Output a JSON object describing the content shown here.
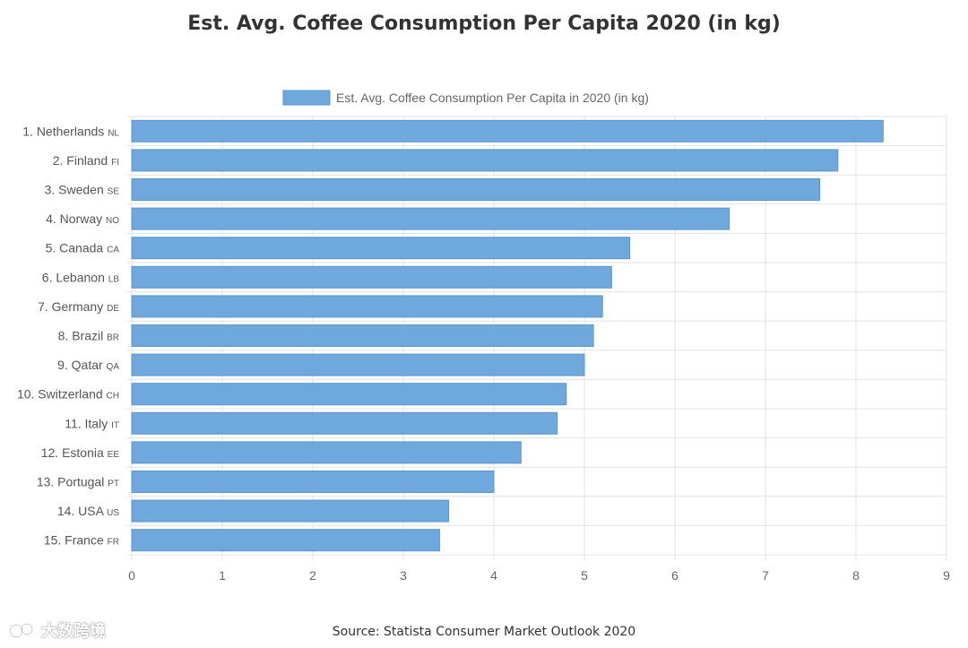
{
  "chart_data": {
    "type": "bar",
    "orientation": "horizontal",
    "title": "Est. Avg. Coffee Consumption Per Capita 2020 (in kg)",
    "legend": [
      "Est. Avg. Coffee Consumption Per Capita in 2020 (in kg)"
    ],
    "legend_position": "top",
    "categories": [
      {
        "label": "1. Netherlands",
        "code": "NL"
      },
      {
        "label": "2. Finland",
        "code": "FI"
      },
      {
        "label": "3. Sweden",
        "code": "SE"
      },
      {
        "label": "4. Norway",
        "code": "NO"
      },
      {
        "label": "5. Canada",
        "code": "CA"
      },
      {
        "label": "6. Lebanon",
        "code": "LB"
      },
      {
        "label": "7. Germany",
        "code": "DE"
      },
      {
        "label": "8. Brazil",
        "code": "BR"
      },
      {
        "label": "9. Qatar",
        "code": "QA"
      },
      {
        "label": "10. Switzerland",
        "code": "CH"
      },
      {
        "label": "11. Italy",
        "code": "IT"
      },
      {
        "label": "12. Estonia",
        "code": "EE"
      },
      {
        "label": "13. Portugal",
        "code": "PT"
      },
      {
        "label": "14. USA",
        "code": "US"
      },
      {
        "label": "15. France",
        "code": "FR"
      }
    ],
    "values": [
      8.3,
      7.8,
      7.6,
      6.6,
      5.5,
      5.3,
      5.2,
      5.1,
      5.0,
      4.8,
      4.7,
      4.3,
      4.0,
      3.5,
      3.4
    ],
    "xlim": [
      0,
      9
    ],
    "xticks": [
      0,
      1,
      2,
      3,
      4,
      5,
      6,
      7,
      8,
      9
    ],
    "xlabel": "",
    "ylabel": "",
    "grid": true,
    "bar_color": "#6fa8dc"
  },
  "source": "Source: Statista Consumer Market Outlook 2020",
  "watermark": "大数跨境"
}
